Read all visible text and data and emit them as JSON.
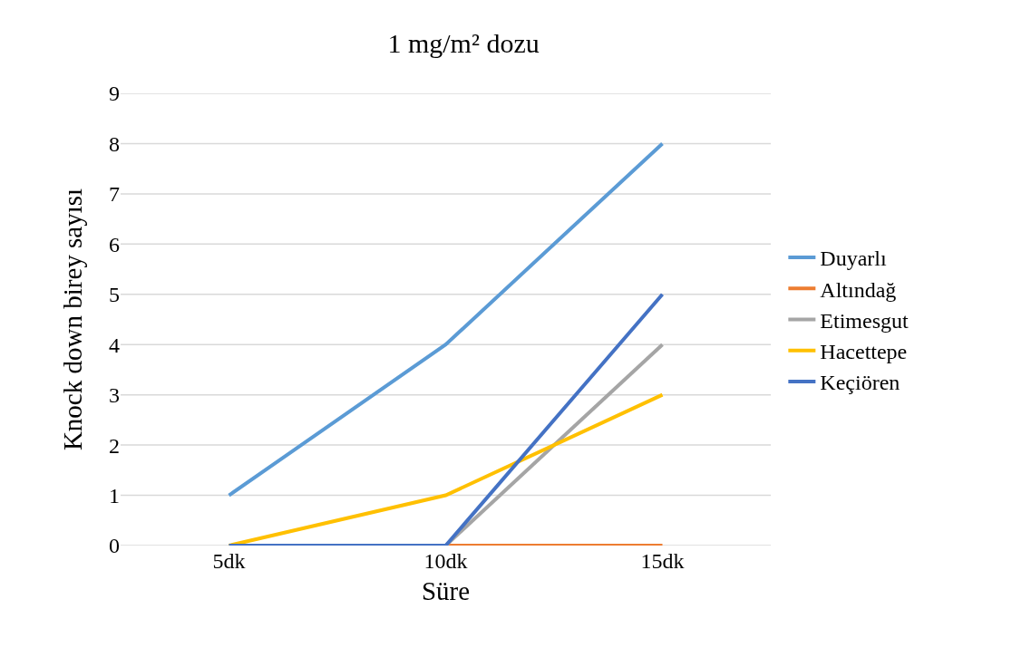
{
  "chart_data": {
    "type": "line",
    "title": "1 mg/m² dozu",
    "xlabel": "Süre",
    "ylabel": "Knock down birey sayısı",
    "categories": [
      "5dk",
      "10dk",
      "15dk"
    ],
    "series": [
      {
        "name": "Duyarlı",
        "color": "#5b9bd5",
        "values": [
          1,
          4,
          8
        ]
      },
      {
        "name": "Altındağ",
        "color": "#ed7d31",
        "values": [
          null,
          0,
          0
        ]
      },
      {
        "name": "Etimesgut",
        "color": "#a5a5a5",
        "values": [
          null,
          0,
          4
        ]
      },
      {
        "name": "Hacettepe",
        "color": "#ffc000",
        "values": [
          0,
          1,
          3
        ]
      },
      {
        "name": "Keçiören",
        "color": "#4472c4",
        "values": [
          0,
          0,
          5
        ]
      }
    ],
    "ylim": [
      0,
      9
    ],
    "yticks": [
      0,
      1,
      2,
      3,
      4,
      5,
      6,
      7,
      8,
      9
    ],
    "grid": "y",
    "legend": "right",
    "marker": "none",
    "line_style": "solid"
  }
}
